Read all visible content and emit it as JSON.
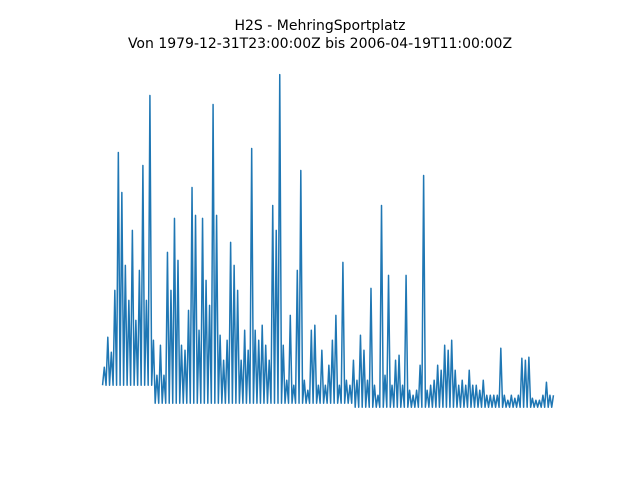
{
  "chart_data": {
    "type": "line",
    "title": "H2S - MehringSportplatz",
    "subtitle": "Von 1979-12-31T23:00:00Z bis 2006-04-19T11:00:00Z",
    "color": "#1f77b4",
    "ylim": [
      0,
      370
    ],
    "values": [
      42,
      60,
      42,
      90,
      42,
      75,
      42,
      137,
      42,
      275,
      42,
      235,
      42,
      162,
      42,
      127,
      42,
      197,
      42,
      107,
      42,
      157,
      42,
      262,
      42,
      127,
      42,
      332,
      42,
      87,
      24,
      52,
      24,
      82,
      24,
      52,
      24,
      175,
      24,
      137,
      24,
      209,
      24,
      167,
      24,
      82,
      24,
      77,
      24,
      117,
      24,
      240,
      24,
      212,
      24,
      97,
      24,
      209,
      24,
      147,
      24,
      122,
      24,
      323,
      24,
      212,
      24,
      92,
      24,
      67,
      24,
      87,
      24,
      185,
      24,
      162,
      24,
      137,
      24,
      67,
      24,
      97,
      24,
      77,
      24,
      279,
      24,
      97,
      24,
      87,
      24,
      102,
      24,
      82,
      24,
      67,
      24,
      222,
      24,
      197,
      24,
      353,
      24,
      82,
      24,
      47,
      24,
      112,
      24,
      42,
      24,
      157,
      24,
      257,
      24,
      47,
      24,
      37,
      24,
      97,
      24,
      102,
      24,
      42,
      24,
      77,
      24,
      42,
      24,
      62,
      24,
      87,
      24,
      112,
      24,
      42,
      24,
      165,
      24,
      47,
      24,
      42,
      24,
      67,
      20,
      47,
      20,
      92,
      20,
      77,
      20,
      47,
      20,
      139,
      20,
      42,
      20,
      32,
      20,
      222,
      20,
      52,
      20,
      152,
      20,
      42,
      20,
      67,
      20,
      72,
      20,
      42,
      20,
      152,
      20,
      37,
      20,
      32,
      20,
      37,
      20,
      62,
      20,
      252,
      20,
      37,
      20,
      42,
      20,
      47,
      20,
      62,
      20,
      57,
      20,
      82,
      20,
      77,
      20,
      87,
      20,
      57,
      20,
      42,
      20,
      47,
      20,
      42,
      20,
      57,
      20,
      42,
      20,
      42,
      20,
      37,
      20,
      47,
      20,
      32,
      20,
      32,
      20,
      32,
      20,
      32,
      20,
      79,
      20,
      32,
      20,
      27,
      20,
      32,
      20,
      29,
      20,
      32,
      20,
      69,
      20,
      67,
      20,
      70,
      20,
      29,
      20,
      27,
      20,
      27,
      20,
      32,
      20,
      45,
      20,
      32,
      20,
      32
    ]
  }
}
